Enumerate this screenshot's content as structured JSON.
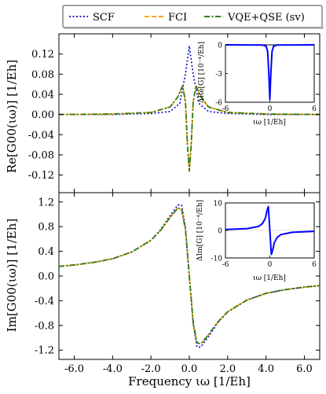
{
  "legend": {
    "placement": "top-center",
    "entries": [
      {
        "label": "SCF",
        "color": "#1f1fcc",
        "dash": "dotted"
      },
      {
        "label": "FCI",
        "color": "#ffa500",
        "dash": "dashed"
      },
      {
        "label": "VQE+QSE (sv)",
        "color": "#2e7d1a",
        "dash": "dashdot"
      }
    ]
  },
  "x_axis": {
    "label": "Frequency ιω [1/Eh]",
    "ticks": [
      "-6.0",
      "-4.0",
      "-2.0",
      "0.0",
      "2.0",
      "4.0",
      "6.0"
    ],
    "tick_values": [
      -6,
      -4,
      -2,
      0,
      2,
      4,
      6
    ],
    "range": [
      -6.8,
      6.8
    ]
  },
  "chart_data": [
    {
      "type": "line",
      "panel": "top",
      "ylabel": "Re[G00(ιω)] [1/Eh]",
      "ylim": [
        -0.155,
        0.16
      ],
      "yticks": [
        "0.12",
        "0.08",
        "0.04",
        "0.00",
        "-0.04",
        "-0.08",
        "-0.12"
      ],
      "ytick_values": [
        0.12,
        0.08,
        0.04,
        0.0,
        -0.04,
        -0.08,
        -0.12
      ],
      "series": [
        {
          "name": "SCF",
          "x": [
            -6.8,
            -4,
            -2,
            -1,
            -0.5,
            -0.2,
            0,
            0.2,
            0.5,
            1,
            2,
            4,
            6.8
          ],
          "y": [
            0.0,
            0.0,
            0.002,
            0.006,
            0.022,
            0.08,
            0.136,
            0.08,
            0.022,
            0.006,
            0.002,
            0.0,
            0.0
          ]
        },
        {
          "name": "FCI",
          "x": [
            -6.8,
            -4,
            -2,
            -1,
            -0.6,
            -0.35,
            -0.2,
            -0.1,
            0,
            0.1,
            0.2,
            0.35,
            0.6,
            1,
            2,
            4,
            6.8
          ],
          "y": [
            0.0,
            0.001,
            0.004,
            0.015,
            0.035,
            0.057,
            0.025,
            -0.06,
            -0.112,
            -0.06,
            0.025,
            0.057,
            0.035,
            0.015,
            0.004,
            0.001,
            0.0
          ]
        },
        {
          "name": "VQE+QSE (sv)",
          "x": [
            -6.8,
            -4,
            -2,
            -1,
            -0.6,
            -0.35,
            -0.2,
            -0.1,
            0,
            0.1,
            0.2,
            0.35,
            0.6,
            1,
            2,
            4,
            6.8
          ],
          "y": [
            0.0,
            0.001,
            0.004,
            0.015,
            0.035,
            0.057,
            0.025,
            -0.06,
            -0.112,
            -0.06,
            0.025,
            0.057,
            0.035,
            0.015,
            0.004,
            0.001,
            0.0
          ]
        }
      ],
      "inset": {
        "ylabel": "ΔRe[G] [10⁻⁴/Eh]",
        "xlabel": "ιω [1/Eh]",
        "xlim": [
          -6,
          6
        ],
        "ylim": [
          -6,
          0
        ],
        "xticks": [
          "-6",
          "0",
          "6"
        ],
        "xtick_values": [
          -6,
          0,
          6
        ],
        "yticks": [
          "0",
          "-3",
          "-6"
        ],
        "ytick_values": [
          0,
          -3,
          -6
        ],
        "color": "#0000ff",
        "x": [
          -6,
          -1,
          -0.5,
          -0.3,
          -0.15,
          0,
          0.15,
          0.3,
          0.5,
          1,
          6
        ],
        "y": [
          0,
          -0.02,
          -0.15,
          -0.7,
          -2.8,
          -5.7,
          -2.8,
          -0.7,
          -0.15,
          -0.02,
          0
        ]
      }
    },
    {
      "type": "line",
      "panel": "bottom",
      "ylabel": "Im[G00(ιω)] [1/Eh]",
      "ylim": [
        -1.35,
        1.35
      ],
      "yticks": [
        "1.2",
        "0.8",
        "0.4",
        "0.0",
        "-0.4",
        "-0.8",
        "-1.2"
      ],
      "ytick_values": [
        1.2,
        0.8,
        0.4,
        0.0,
        -0.4,
        -0.8,
        -1.2
      ],
      "series": [
        {
          "name": "SCF",
          "x": [
            -6.8,
            -6,
            -5,
            -4,
            -3,
            -2,
            -1.5,
            -1,
            -0.6,
            -0.4,
            -0.2,
            0,
            0.2,
            0.4,
            0.6,
            1,
            1.5,
            2,
            3,
            4,
            5,
            6,
            6.8
          ],
          "y": [
            0.155,
            0.18,
            0.22,
            0.28,
            0.39,
            0.58,
            0.75,
            0.98,
            1.15,
            1.15,
            0.78,
            0.0,
            -0.78,
            -1.15,
            -1.15,
            -0.98,
            -0.75,
            -0.58,
            -0.39,
            -0.28,
            -0.22,
            -0.18,
            -0.155
          ]
        },
        {
          "name": "FCI",
          "x": [
            -6.8,
            -6,
            -5,
            -4,
            -3,
            -2,
            -1.5,
            -1,
            -0.6,
            -0.4,
            -0.2,
            0,
            0.2,
            0.4,
            0.6,
            1,
            1.5,
            2,
            3,
            4,
            5,
            6,
            6.8
          ],
          "y": [
            0.155,
            0.18,
            0.22,
            0.28,
            0.39,
            0.58,
            0.74,
            0.95,
            1.1,
            1.08,
            0.75,
            0.0,
            -0.75,
            -1.08,
            -1.1,
            -0.95,
            -0.74,
            -0.58,
            -0.39,
            -0.28,
            -0.22,
            -0.18,
            -0.155
          ]
        },
        {
          "name": "VQE+QSE (sv)",
          "x": [
            -6.8,
            -6,
            -5,
            -4,
            -3,
            -2,
            -1.5,
            -1,
            -0.6,
            -0.4,
            -0.2,
            0,
            0.2,
            0.4,
            0.6,
            1,
            1.5,
            2,
            3,
            4,
            5,
            6,
            6.8
          ],
          "y": [
            0.155,
            0.18,
            0.22,
            0.28,
            0.39,
            0.58,
            0.74,
            0.95,
            1.1,
            1.08,
            0.75,
            0.0,
            -0.75,
            -1.08,
            -1.1,
            -0.95,
            -0.74,
            -0.58,
            -0.39,
            -0.28,
            -0.22,
            -0.18,
            -0.155
          ]
        }
      ],
      "inset": {
        "ylabel": "ΔIm[G] [10⁻⁴/Eh]",
        "xlabel": "ιω [1/Eh]",
        "xlim": [
          -6,
          6
        ],
        "ylim": [
          -10,
          10
        ],
        "xticks": [
          "-6",
          "0",
          "6"
        ],
        "xtick_values": [
          -6,
          0,
          6
        ],
        "yticks": [
          "10",
          "0",
          "-10"
        ],
        "ytick_values": [
          10,
          0,
          -10
        ],
        "color": "#0000ff",
        "x": [
          -6,
          -3,
          -1.5,
          -1,
          -0.6,
          -0.4,
          -0.2,
          0,
          0.2,
          0.4,
          0.6,
          1,
          1.5,
          3,
          6
        ],
        "y": [
          0.3,
          0.7,
          1.5,
          2.5,
          4.5,
          7,
          8.7,
          0,
          -8.7,
          -7,
          -4.5,
          -2.5,
          -1.5,
          -0.7,
          -0.3
        ]
      }
    }
  ]
}
